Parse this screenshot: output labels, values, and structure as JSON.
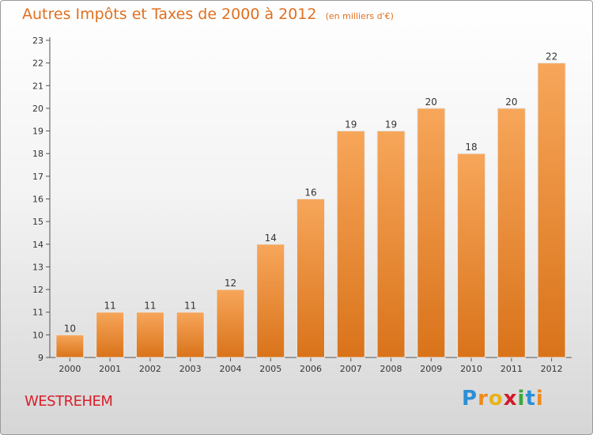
{
  "chart_data": {
    "type": "bar",
    "title": "Autres Impôts et Taxes de 2000 à 2012",
    "subtitle": "(en milliers d'€)",
    "categories": [
      "2000",
      "2001",
      "2002",
      "2003",
      "2004",
      "2005",
      "2006",
      "2007",
      "2008",
      "2009",
      "2010",
      "2011",
      "2012"
    ],
    "values": [
      10,
      11,
      11,
      11,
      12,
      14,
      16,
      19,
      19,
      20,
      18,
      20,
      22
    ],
    "ylim": [
      9,
      23
    ],
    "yticks": [
      9,
      10,
      11,
      12,
      13,
      14,
      15,
      16,
      17,
      18,
      19,
      20,
      21,
      22,
      23
    ],
    "grid": false,
    "bar_color_top": "#f7a65a",
    "bar_color_bottom": "#d9731a"
  },
  "footer": {
    "town": "WESTREHEM",
    "logo_letters": [
      "P",
      "r",
      "o",
      "x",
      "i",
      "t",
      "i"
    ],
    "logo_colors": [
      "#2c8fd6",
      "#f08a1c",
      "#e8b21a",
      "#d11a2a",
      "#3aa83a",
      "#2c8fd6",
      "#f08a1c"
    ]
  }
}
